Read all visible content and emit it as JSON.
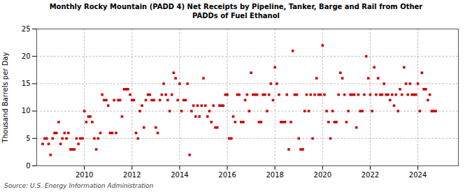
{
  "chart_data": {
    "type": "scatter",
    "title": "Monthly Rocky Mountain (PADD 4) Net Receipts by Pipeline, Tanker, Barge and Rail from Other\nPADDs of Fuel Ethanol",
    "ylabel": "Thousand Barrels per Day",
    "source": "Source: U.S. Energy Information Administration",
    "color": "#cc0000",
    "marker": "square",
    "grid": true,
    "xlim": [
      2008.0,
      2025.7
    ],
    "ylim": [
      0,
      25
    ],
    "xticks": [
      2010,
      2012,
      2014,
      2016,
      2018,
      2020,
      2022,
      2024
    ],
    "yticks": [
      0,
      5,
      10,
      15,
      20,
      25
    ],
    "x": [
      2008.25,
      2008.33,
      2008.42,
      2008.5,
      2008.58,
      2008.67,
      2008.75,
      2008.83,
      2008.92,
      2009.0,
      2009.08,
      2009.17,
      2009.25,
      2009.33,
      2009.42,
      2009.5,
      2009.58,
      2009.67,
      2009.75,
      2009.83,
      2009.92,
      2010.0,
      2010.08,
      2010.17,
      2010.25,
      2010.33,
      2010.42,
      2010.5,
      2010.58,
      2010.67,
      2010.75,
      2010.83,
      2010.92,
      2011.0,
      2011.08,
      2011.17,
      2011.25,
      2011.33,
      2011.42,
      2011.5,
      2011.58,
      2011.67,
      2011.75,
      2011.83,
      2011.92,
      2012.0,
      2012.08,
      2012.17,
      2012.25,
      2012.33,
      2012.42,
      2012.5,
      2012.58,
      2012.67,
      2012.75,
      2012.83,
      2012.92,
      2013.0,
      2013.08,
      2013.17,
      2013.25,
      2013.33,
      2013.42,
      2013.5,
      2013.58,
      2013.67,
      2013.75,
      2013.83,
      2013.92,
      2014.0,
      2014.08,
      2014.17,
      2014.25,
      2014.33,
      2014.42,
      2014.5,
      2014.58,
      2014.67,
      2014.75,
      2014.83,
      2014.92,
      2015.0,
      2015.08,
      2015.17,
      2015.25,
      2015.33,
      2015.42,
      2015.5,
      2015.58,
      2015.67,
      2015.75,
      2015.83,
      2015.92,
      2016.0,
      2016.08,
      2016.17,
      2016.25,
      2016.33,
      2016.42,
      2016.5,
      2016.58,
      2016.67,
      2016.75,
      2016.83,
      2016.92,
      2017.0,
      2017.08,
      2017.17,
      2017.25,
      2017.33,
      2017.42,
      2017.5,
      2017.58,
      2017.67,
      2017.75,
      2017.83,
      2017.92,
      2018.0,
      2018.08,
      2018.17,
      2018.25,
      2018.33,
      2018.42,
      2018.5,
      2018.58,
      2018.67,
      2018.75,
      2018.83,
      2018.92,
      2019.0,
      2019.08,
      2019.17,
      2019.25,
      2019.33,
      2019.42,
      2019.5,
      2019.58,
      2019.67,
      2019.75,
      2019.83,
      2019.92,
      2020.0,
      2020.08,
      2020.17,
      2020.25,
      2020.33,
      2020.42,
      2020.5,
      2020.58,
      2020.67,
      2020.75,
      2020.83,
      2020.92,
      2021.0,
      2021.08,
      2021.17,
      2021.25,
      2021.33,
      2021.42,
      2021.5,
      2021.58,
      2021.67,
      2021.75,
      2021.83,
      2021.92,
      2022.0,
      2022.08,
      2022.17,
      2022.25,
      2022.33,
      2022.42,
      2022.5,
      2022.58,
      2022.67,
      2022.75,
      2022.83,
      2022.92,
      2023.0,
      2023.08,
      2023.17,
      2023.25,
      2023.33,
      2023.42,
      2023.5,
      2023.58,
      2023.67,
      2023.75,
      2023.83,
      2023.92,
      2024.0,
      2024.08,
      2024.17,
      2024.25,
      2024.33,
      2024.42,
      2024.5,
      2024.58,
      2024.67,
      2024.75
    ],
    "values": [
      4,
      5,
      5,
      4,
      2,
      5,
      6,
      6,
      8,
      4,
      5,
      6,
      5,
      6,
      3,
      3,
      3,
      5,
      4,
      5,
      5,
      10,
      8,
      9,
      9,
      8,
      5,
      3,
      5,
      6,
      13,
      12,
      12,
      11,
      6,
      6,
      12,
      6,
      12,
      12,
      9,
      14,
      14,
      14,
      13,
      12,
      12,
      6,
      5,
      10,
      11,
      7,
      12,
      13,
      13,
      12,
      12,
      7,
      6,
      12,
      13,
      15,
      13,
      12,
      10,
      13,
      17,
      16,
      12,
      15,
      10,
      12,
      12,
      15,
      2,
      10,
      11,
      9,
      11,
      9,
      11,
      16,
      11,
      9,
      10,
      8,
      11,
      7,
      7,
      11,
      11,
      11,
      13,
      13,
      5,
      5,
      9,
      8,
      13,
      13,
      8,
      8,
      12,
      13,
      10,
      17,
      13,
      13,
      13,
      8,
      8,
      13,
      13,
      10,
      13,
      15,
      12,
      18,
      15,
      13,
      8,
      8,
      8,
      13,
      3,
      8,
      21,
      13,
      13,
      5,
      3,
      3,
      10,
      13,
      10,
      13,
      5,
      13,
      16,
      13,
      13,
      22,
      13,
      10,
      8,
      5,
      10,
      8,
      8,
      13,
      17,
      16,
      13,
      8,
      10,
      13,
      13,
      13,
      7,
      13,
      10,
      10,
      13,
      20,
      16,
      13,
      10,
      18,
      13,
      16,
      13,
      13,
      15,
      13,
      13,
      12,
      13,
      11,
      13,
      10,
      14,
      13,
      18,
      15,
      13,
      15,
      13,
      13,
      13,
      15,
      10,
      17,
      14,
      14,
      12,
      13,
      10,
      10,
      10
    ]
  }
}
